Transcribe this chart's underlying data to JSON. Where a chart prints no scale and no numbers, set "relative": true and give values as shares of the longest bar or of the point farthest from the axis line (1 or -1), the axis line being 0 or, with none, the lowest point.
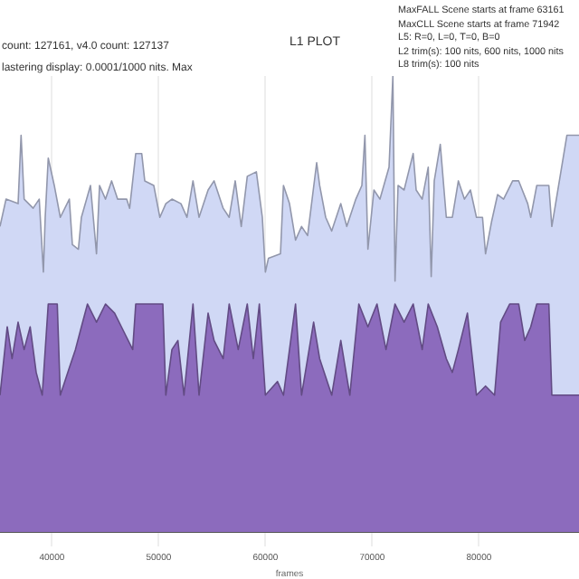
{
  "chart_data": {
    "type": "area",
    "title": "L1 PLOT",
    "xlabel": "frames",
    "relative": true,
    "grid": "x",
    "legend": false,
    "annotations": [
      "count: 127161, v4.0 count: 127137",
      "lastering display: 0.0001/1000 nits. Max",
      "MaxFALL Scene starts at frame 63161",
      "MaxCLL Scene starts at frame 71942",
      "L5: R=0, L=0, T=0, B=0",
      "L2 trim(s): 100 nits, 600 nits, 1000 nits",
      "L8 trim(s): 100 nits"
    ],
    "xlim": [
      35135,
      89375
    ],
    "xticks": [
      40000,
      50000,
      60000,
      70000,
      80000
    ],
    "series": [
      {
        "color": "#d0d8f5",
        "x": [
          35135,
          35700,
          36830,
          37110,
          37395,
          38240,
          38810,
          39200,
          39370,
          39655,
          40220,
          40785,
          41630,
          41915,
          42480,
          42760,
          43610,
          44175,
          44460,
          45020,
          45590,
          46150,
          47000,
          47280,
          47850,
          48410,
          48695,
          49540,
          50110,
          50670,
          51240,
          52085,
          52650,
          53215,
          53780,
          54630,
          55190,
          56040,
          56605,
          57170,
          57735,
          58300,
          59150,
          59710,
          59995,
          60280,
          61410,
          61690,
          62255,
          62820,
          63385,
          63950,
          64800,
          65080,
          65645,
          66210,
          67060,
          67620,
          68470,
          69035,
          69320,
          69600,
          70165,
          70730,
          71580,
          71940,
          72140,
          72425,
          72990,
          73840,
          74120,
          74685,
          75250,
          75530,
          75815,
          76380,
          76945,
          77510,
          78075,
          78640,
          79205,
          79770,
          80335,
          80620,
          81180,
          81750,
          82310,
          83160,
          83725,
          84570,
          84855,
          85420,
          86550,
          86830,
          88240,
          88810,
          89375
        ],
        "values": [
          0.67,
          0.73,
          0.72,
          0.87,
          0.73,
          0.71,
          0.73,
          0.57,
          0.69,
          0.82,
          0.76,
          0.69,
          0.73,
          0.63,
          0.62,
          0.69,
          0.76,
          0.61,
          0.76,
          0.73,
          0.77,
          0.73,
          0.73,
          0.71,
          0.83,
          0.83,
          0.77,
          0.76,
          0.69,
          0.72,
          0.73,
          0.72,
          0.69,
          0.77,
          0.69,
          0.75,
          0.77,
          0.71,
          0.69,
          0.77,
          0.67,
          0.78,
          0.79,
          0.69,
          0.57,
          0.6,
          0.61,
          0.76,
          0.72,
          0.64,
          0.67,
          0.65,
          0.81,
          0.76,
          0.69,
          0.66,
          0.72,
          0.67,
          0.73,
          0.76,
          0.87,
          0.62,
          0.75,
          0.73,
          0.8,
          1.0,
          0.55,
          0.76,
          0.75,
          0.83,
          0.75,
          0.73,
          0.8,
          0.56,
          0.77,
          0.85,
          0.69,
          0.69,
          0.77,
          0.73,
          0.75,
          0.69,
          0.69,
          0.61,
          0.68,
          0.74,
          0.73,
          0.77,
          0.77,
          0.72,
          0.69,
          0.76,
          0.76,
          0.67,
          0.87,
          0.87,
          0.87
        ]
      },
      {
        "color": "#8c6bbd",
        "x": [
          35135,
          35813,
          36265,
          36830,
          37395,
          37960,
          38525,
          39090,
          39655,
          40500,
          40785,
          41630,
          42200,
          42760,
          43330,
          44175,
          45020,
          45870,
          46720,
          47565,
          47850,
          50390,
          50670,
          51240,
          51800,
          52370,
          53215,
          53780,
          54630,
          55190,
          56040,
          56605,
          57450,
          58300,
          58865,
          59430,
          59995,
          61125,
          61690,
          62820,
          63385,
          64515,
          65080,
          66210,
          67060,
          67905,
          68750,
          69600,
          70450,
          71295,
          72140,
          72990,
          73840,
          74685,
          75250,
          76100,
          76945,
          77510,
          78075,
          78920,
          79770,
          80620,
          81465,
          82030,
          82880,
          83725,
          84290,
          84855,
          85420,
          86550,
          86830,
          89375
        ],
        "values": [
          0.3,
          0.45,
          0.38,
          0.46,
          0.4,
          0.45,
          0.35,
          0.3,
          0.5,
          0.5,
          0.3,
          0.36,
          0.4,
          0.45,
          0.5,
          0.46,
          0.5,
          0.48,
          0.44,
          0.4,
          0.5,
          0.5,
          0.3,
          0.4,
          0.42,
          0.3,
          0.5,
          0.3,
          0.48,
          0.42,
          0.38,
          0.5,
          0.4,
          0.5,
          0.38,
          0.5,
          0.3,
          0.33,
          0.3,
          0.5,
          0.3,
          0.46,
          0.38,
          0.3,
          0.42,
          0.3,
          0.5,
          0.45,
          0.5,
          0.4,
          0.5,
          0.46,
          0.5,
          0.4,
          0.5,
          0.45,
          0.38,
          0.35,
          0.4,
          0.48,
          0.3,
          0.32,
          0.3,
          0.46,
          0.5,
          0.5,
          0.42,
          0.45,
          0.5,
          0.5,
          0.3,
          0.3
        ]
      }
    ]
  }
}
